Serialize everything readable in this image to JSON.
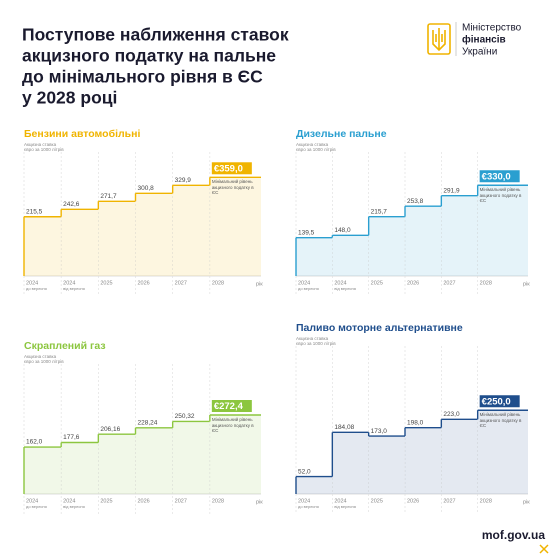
{
  "header": {
    "title_lines": [
      "Поступове наближення ставок",
      "акцизного податку на пальне",
      "до мінімального рівня в ЄС",
      "у 2028 році"
    ],
    "ministry_lines": [
      "Міністерство",
      "фінансів",
      "України"
    ]
  },
  "footer": {
    "url": "mof.gov.ua"
  },
  "chart_data": [
    {
      "type": "step",
      "title": "Бензини автомобільні",
      "y_label_lines": [
        "Акцизна ставка",
        "євро за 1000 літрів"
      ],
      "categories": [
        "2024",
        "2024",
        "2025",
        "2026",
        "2027",
        "2028"
      ],
      "category_notes": [
        "до вересня",
        "від вересня",
        null,
        null,
        null,
        null
      ],
      "x_unit": "рік",
      "values": [
        215.5,
        242.6,
        271.7,
        300.8,
        329.9,
        359.0
      ],
      "value_labels": [
        "215,5",
        "242,6",
        "271,7",
        "300,8",
        "329,9",
        "€359,0"
      ],
      "annotation": "Мінімальний рівень акцизного податку в ЄС",
      "color": "#f0b400",
      "ylim": [
        0,
        400
      ]
    },
    {
      "type": "step",
      "title": "Дизельне пальне",
      "y_label_lines": [
        "Акцизна ставка",
        "євро за 1000 літрів"
      ],
      "categories": [
        "2024",
        "2024",
        "2025",
        "2026",
        "2027",
        "2028"
      ],
      "category_notes": [
        "до вересня",
        "від вересня",
        null,
        null,
        null,
        null
      ],
      "x_unit": "рік",
      "values": [
        139.5,
        148.0,
        215.7,
        253.8,
        291.9,
        330.0
      ],
      "value_labels": [
        "139,5",
        "148,0",
        "215,7",
        "253,8",
        "291,9",
        "€330,0"
      ],
      "annotation": "Мінімальний рівень акцизного податку в ЄС",
      "color": "#2a9fd0",
      "ylim": [
        0,
        400
      ]
    },
    {
      "type": "step",
      "title": "Скраплений газ",
      "y_label_lines": [
        "Акцизна ставка",
        "євро за 1000 літрів"
      ],
      "categories": [
        "2024",
        "2024",
        "2025",
        "2026",
        "2027",
        "2028"
      ],
      "category_notes": [
        "до вересня",
        "від вересня",
        null,
        null,
        null,
        null
      ],
      "x_unit": "рік",
      "values": [
        162.0,
        177.6,
        206.16,
        228.24,
        250.32,
        272.4
      ],
      "value_labels": [
        "162,0",
        "177,6",
        "206,16",
        "228,24",
        "250,32",
        "€272,4"
      ],
      "annotation": "Мінімальний рівень акцизного податку в ЄС",
      "color": "#8cc63f",
      "ylim": [
        0,
        400
      ]
    },
    {
      "type": "step",
      "title": "Паливо моторне альтернативне",
      "y_label_lines": [
        "Акцизна ставка",
        "євро за 1000 літрів"
      ],
      "categories": [
        "2024",
        "2024",
        "2025",
        "2026",
        "2027",
        "2028"
      ],
      "category_notes": [
        "до вересня",
        "від вересня",
        null,
        null,
        null,
        null
      ],
      "x_unit": "рік",
      "values": [
        52.0,
        184.08,
        173.0,
        198.0,
        223.0,
        250.0
      ],
      "value_labels": [
        "52,0",
        "184,08",
        "173,0",
        "198,0",
        "223,0",
        "€250,0"
      ],
      "annotation": "Мінімальний рівень акцизного податку в ЄС",
      "color": "#1f4e8c",
      "ylim": [
        0,
        400
      ]
    }
  ]
}
